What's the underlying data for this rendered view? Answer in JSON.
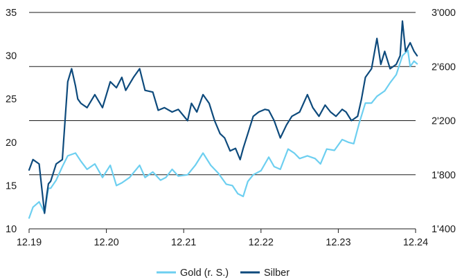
{
  "chart_data": {
    "type": "line",
    "x_tick_labels": [
      "12.19",
      "12.20",
      "12.21",
      "12.22",
      "12.23",
      "12.24"
    ],
    "y_left": {
      "ticks": [
        "10",
        "15",
        "20",
        "25",
        "30",
        "35"
      ],
      "ylim": [
        10,
        35
      ]
    },
    "y_right": {
      "ticks": [
        "1'400",
        "1'800",
        "2'200",
        "2'600",
        "3'000"
      ],
      "ylim": [
        1400,
        3000
      ]
    },
    "grid": "horizontal",
    "legend_position": "bottom-center",
    "series": [
      {
        "name": "Gold (r. S.)",
        "axis": "right",
        "color": "#6dcff0",
        "x": [
          2019.95,
          2020.0,
          2020.08,
          2020.15,
          2020.2,
          2020.23,
          2020.3,
          2020.38,
          2020.45,
          2020.55,
          2020.62,
          2020.7,
          2020.8,
          2020.9,
          2021.0,
          2021.08,
          2021.15,
          2021.25,
          2021.38,
          2021.45,
          2021.55,
          2021.65,
          2021.72,
          2021.8,
          2021.88,
          2022.0,
          2022.1,
          2022.2,
          2022.3,
          2022.4,
          2022.5,
          2022.58,
          2022.65,
          2022.72,
          2022.78,
          2022.85,
          2022.95,
          2023.05,
          2023.12,
          2023.2,
          2023.3,
          2023.38,
          2023.45,
          2023.55,
          2023.65,
          2023.72,
          2023.8,
          2023.9,
          2024.0,
          2024.08,
          2024.15,
          2024.22,
          2024.3,
          2024.38,
          2024.45,
          2024.55,
          2024.62,
          2024.7,
          2024.78,
          2024.85,
          2024.88,
          2024.93,
          2024.97
        ],
        "values": [
          1480,
          1560,
          1600,
          1520,
          1700,
          1700,
          1760,
          1860,
          1940,
          1960,
          1900,
          1840,
          1880,
          1780,
          1870,
          1720,
          1740,
          1780,
          1870,
          1780,
          1820,
          1760,
          1780,
          1840,
          1790,
          1800,
          1870,
          1960,
          1870,
          1810,
          1730,
          1720,
          1660,
          1640,
          1750,
          1800,
          1830,
          1930,
          1860,
          1840,
          1990,
          1960,
          1920,
          1940,
          1920,
          1880,
          1990,
          1980,
          2060,
          2040,
          2030,
          2180,
          2330,
          2330,
          2380,
          2420,
          2480,
          2540,
          2680,
          2720,
          2600,
          2640,
          2620
        ]
      },
      {
        "name": "Silber",
        "axis": "left",
        "color": "#0d4a7c",
        "x": [
          2019.95,
          2020.0,
          2020.08,
          2020.15,
          2020.18,
          2020.2,
          2020.23,
          2020.3,
          2020.38,
          2020.45,
          2020.5,
          2020.55,
          2020.58,
          2020.62,
          2020.7,
          2020.8,
          2020.9,
          2021.0,
          2021.08,
          2021.15,
          2021.2,
          2021.3,
          2021.38,
          2021.45,
          2021.55,
          2021.62,
          2021.7,
          2021.8,
          2021.88,
          2022.0,
          2022.05,
          2022.12,
          2022.2,
          2022.28,
          2022.35,
          2022.42,
          2022.48,
          2022.55,
          2022.62,
          2022.68,
          2022.72,
          2022.78,
          2022.85,
          2022.92,
          2023.0,
          2023.05,
          2023.12,
          2023.2,
          2023.28,
          2023.35,
          2023.45,
          2023.55,
          2023.62,
          2023.7,
          2023.78,
          2023.85,
          2023.92,
          2024.0,
          2024.05,
          2024.12,
          2024.2,
          2024.25,
          2024.3,
          2024.38,
          2024.45,
          2024.5,
          2024.55,
          2024.62,
          2024.7,
          2024.75,
          2024.78,
          2024.82,
          2024.88,
          2024.93,
          2024.97
        ],
        "values": [
          16.8,
          18.0,
          17.5,
          11.8,
          14.0,
          15.2,
          15.5,
          17.5,
          18.0,
          27.0,
          28.5,
          26.5,
          25.0,
          24.5,
          24.0,
          25.5,
          24.0,
          27.0,
          26.3,
          27.5,
          26.0,
          27.5,
          28.5,
          26.0,
          25.8,
          23.7,
          24.0,
          23.5,
          23.8,
          22.5,
          24.5,
          23.5,
          25.5,
          24.5,
          22.5,
          21.0,
          20.5,
          19.0,
          19.3,
          18.0,
          19.3,
          21.0,
          23.0,
          23.5,
          23.8,
          23.7,
          22.5,
          20.5,
          22.0,
          23.0,
          23.5,
          25.5,
          24.0,
          23.0,
          24.3,
          23.5,
          23.0,
          23.8,
          23.5,
          22.5,
          23.0,
          25.0,
          27.5,
          28.5,
          32.0,
          29.0,
          30.5,
          28.5,
          29.0,
          30.0,
          34.0,
          30.5,
          31.5,
          30.5,
          30.0
        ]
      }
    ]
  }
}
